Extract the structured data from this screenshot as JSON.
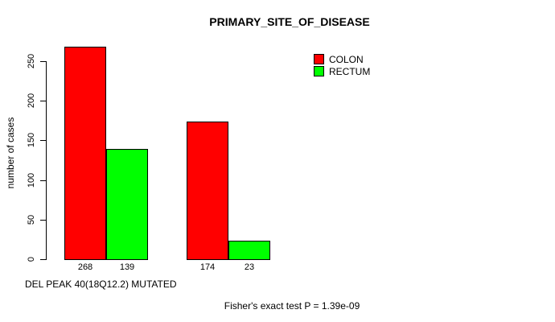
{
  "chart_data": {
    "type": "bar",
    "title": "PRIMARY_SITE_OF_DISEASE",
    "ylabel": "number of cases",
    "xlabel": "DEL PEAK 40(18Q12.2) MUTATED",
    "yticks": [
      0,
      50,
      100,
      150,
      200,
      250
    ],
    "ylim": [
      0,
      270
    ],
    "n_groups": 2,
    "series": [
      {
        "name": "COLON",
        "color": "#ff0000",
        "values": [
          268,
          174
        ]
      },
      {
        "name": "RECTUM",
        "color": "#00ff00",
        "values": [
          139,
          23
        ]
      }
    ],
    "bar_value_labels": [
      [
        268,
        139
      ],
      [
        174,
        23
      ]
    ],
    "legend_position": "top-right",
    "grid": false,
    "annotation": "Fisher's exact test P = 1.39e-09",
    "colors": {
      "colon": "#ff0000",
      "rectum": "#00ff00",
      "axis": "#000000",
      "background": "#ffffff"
    }
  }
}
